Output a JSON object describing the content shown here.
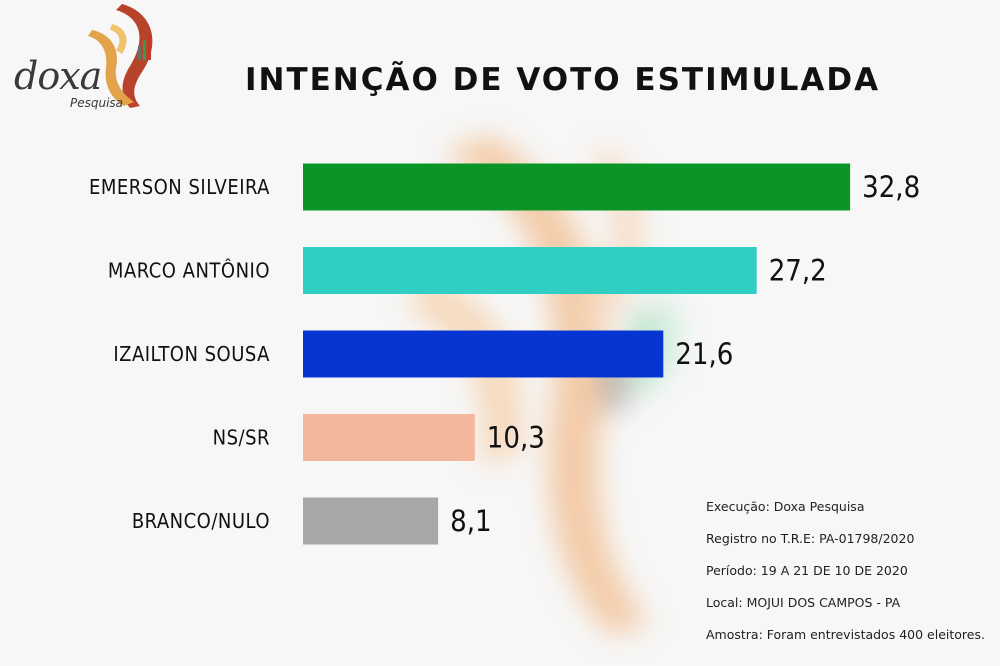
{
  "logo": {
    "word": "doxa",
    "sub": "Pesquisa"
  },
  "title": "INTENÇÃO DE VOTO ESTIMULADA",
  "colors": {
    "emerson": "#0b9526",
    "marco": "#31cec4",
    "izailton": "#0735d2",
    "nssr": "#f3b89c",
    "branco": "#a6a7a8"
  },
  "chart_data": {
    "type": "bar",
    "orientation": "horizontal",
    "categories": [
      "EMERSON SILVEIRA",
      "MARCO ANTÔNIO",
      "IZAILTON SOUSA",
      "NS/SR",
      "BRANCO/NULO"
    ],
    "values": [
      32.8,
      27.2,
      21.6,
      10.3,
      8.1
    ],
    "value_labels": [
      "32,8",
      "27,2",
      "21,6",
      "10,3",
      "8,1"
    ],
    "bar_colors": [
      "#0b9526",
      "#31cec4",
      "#0735d2",
      "#f3b89c",
      "#a6a7a8"
    ],
    "title": "INTENÇÃO DE VOTO ESTIMULADA",
    "xlabel": "",
    "ylabel": "",
    "grid": false,
    "legend": "none"
  },
  "info": {
    "execucao": "Execução: Doxa Pesquisa",
    "registro": "Registro no T.R.E:  PA-01798/2020",
    "periodo": "Período: 19 A 21 DE 10 DE 2020",
    "local": "Local: MOJUI DOS CAMPOS - PA",
    "amostra": "Amostra: Foram entrevistados 400 eleitores."
  }
}
